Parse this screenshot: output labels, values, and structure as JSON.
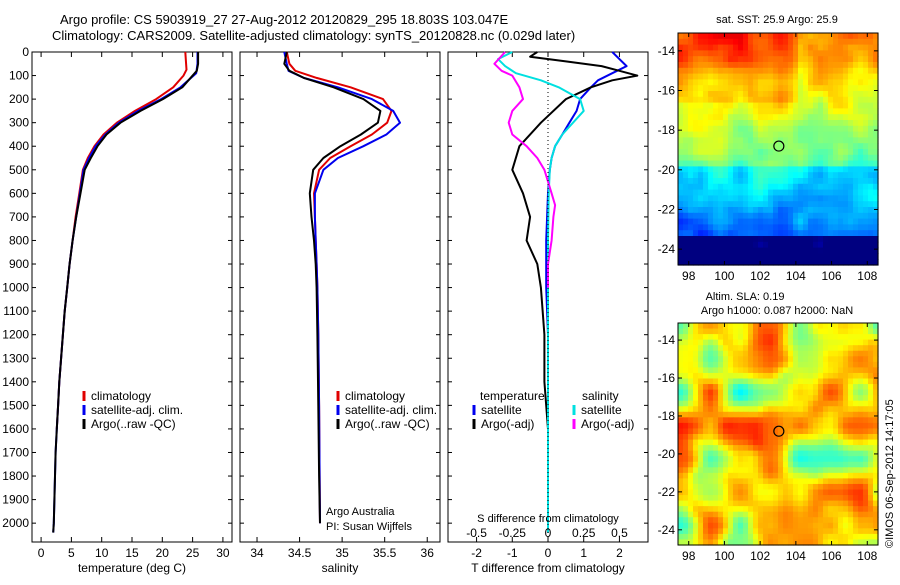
{
  "header": {
    "line1": "Argo profile: CS 5903919_27 27-Aug-2012 20120829_295 18.803S 103.047E",
    "line2": "Climatology: CARS2009. Satellite-adjusted climatology: synTS_20120828.nc (0.029d later)"
  },
  "stamp": "©IMOS 06-Sep-2012 14:17:05",
  "signature": {
    "line1": "Argo Australia",
    "line2": "PI: Susan Wijffels"
  },
  "colors": {
    "climatology": "#e00000",
    "satellite": "#0000ee",
    "argo": "#000000",
    "satellite_s": "#00e0e0",
    "argo_s": "#ff00ff"
  },
  "chart_data": [
    {
      "type": "line",
      "id": "temperature",
      "xlabel": "temperature (deg C)",
      "xlim": [
        -1.5,
        31.5
      ],
      "ylim": [
        2080,
        0
      ],
      "xticks": [
        0,
        5,
        10,
        15,
        20,
        25,
        30
      ],
      "yticks": [
        0,
        100,
        200,
        300,
        400,
        500,
        600,
        700,
        800,
        900,
        1000,
        1100,
        1200,
        1300,
        1400,
        1500,
        1600,
        1700,
        1800,
        1900,
        2000
      ],
      "legend": [
        "climatology",
        "satellite-adj. clim.",
        "Argo(..raw -QC)"
      ],
      "series": [
        {
          "name": "climatology",
          "color_key": "climatology",
          "x": [
            23.8,
            24.0,
            23.5,
            21.8,
            19.0,
            15.5,
            12.5,
            10.3,
            8.8,
            7.7,
            6.9,
            6.3,
            5.7,
            5.2,
            4.7,
            4.3,
            3.9,
            3.6,
            3.3,
            3.0,
            2.8,
            2.6
          ],
          "y": [
            0,
            75,
            100,
            150,
            200,
            250,
            300,
            350,
            400,
            450,
            500,
            600,
            700,
            800,
            900,
            1000,
            1100,
            1200,
            1300,
            1400,
            1500,
            1600
          ]
        },
        {
          "name": "satellite-adj. clim.",
          "color_key": "satellite",
          "x": [
            25.8,
            25.8,
            25.6,
            23.0,
            19.8,
            16.0,
            12.8,
            10.6,
            9.0,
            7.9,
            7.0,
            6.4,
            5.8,
            5.2,
            4.7,
            4.3,
            3.9,
            3.6,
            3.3,
            3.0,
            2.8,
            2.6,
            2.4,
            2.3,
            2.2,
            2.1,
            2.0
          ],
          "y": [
            0,
            50,
            90,
            150,
            200,
            250,
            300,
            350,
            400,
            450,
            500,
            600,
            700,
            800,
            900,
            1000,
            1100,
            1200,
            1300,
            1400,
            1500,
            1600,
            1700,
            1800,
            1900,
            2000,
            2040
          ]
        },
        {
          "name": "Argo(..raw -QC)",
          "color_key": "argo",
          "x": [
            25.9,
            25.9,
            25.7,
            23.3,
            20.1,
            16.4,
            13.1,
            10.8,
            9.3,
            8.2,
            7.2,
            6.5,
            5.8,
            5.2,
            4.7,
            4.3,
            3.9,
            3.6,
            3.3,
            3.0,
            2.8,
            2.6,
            2.4,
            2.3,
            2.2,
            2.1,
            2.0
          ],
          "y": [
            0,
            50,
            80,
            150,
            200,
            250,
            300,
            350,
            400,
            450,
            500,
            600,
            700,
            800,
            900,
            1000,
            1100,
            1200,
            1300,
            1400,
            1500,
            1600,
            1700,
            1800,
            1900,
            2000,
            2040
          ]
        }
      ]
    },
    {
      "type": "line",
      "id": "salinity",
      "xlabel": "salinity",
      "xlim": [
        33.8,
        36.15
      ],
      "ylim": [
        2080,
        0
      ],
      "xticks": [
        34,
        34.5,
        35,
        35.5,
        36
      ],
      "tick_labels": [
        "34",
        "34.5",
        "35",
        "35.5",
        "36"
      ],
      "legend": [
        "climatology",
        "satellite-adj. clim.",
        "Argo(..raw -QC)"
      ],
      "series": [
        {
          "name": "climatology",
          "color_key": "climatology",
          "x": [
            34.35,
            34.38,
            34.45,
            34.7,
            35.1,
            35.48,
            35.58,
            35.53,
            35.35,
            35.1,
            34.86,
            34.73,
            34.67,
            34.68,
            34.69,
            34.7,
            34.71,
            34.72,
            34.73,
            34.735,
            34.74
          ],
          "y": [
            0,
            50,
            80,
            110,
            150,
            200,
            250,
            300,
            350,
            400,
            450,
            500,
            600,
            700,
            800,
            900,
            1000,
            1200,
            1500,
            1800,
            2000
          ]
        },
        {
          "name": "satellite-adj. clim.",
          "color_key": "satellite",
          "x": [
            34.32,
            34.35,
            34.37,
            34.55,
            34.95,
            35.35,
            35.6,
            35.68,
            35.52,
            35.25,
            34.95,
            34.78,
            34.68,
            34.68,
            34.69,
            34.7,
            34.71,
            34.72,
            34.73,
            34.735,
            34.74
          ],
          "y": [
            0,
            50,
            80,
            110,
            150,
            200,
            250,
            300,
            350,
            400,
            450,
            500,
            600,
            700,
            800,
            900,
            1000,
            1200,
            1500,
            1800,
            2000
          ]
        },
        {
          "name": "Argo(..raw -QC)",
          "color_key": "argo",
          "x": [
            34.35,
            34.32,
            34.38,
            34.55,
            34.9,
            35.25,
            35.45,
            35.42,
            35.22,
            34.98,
            34.78,
            34.66,
            34.62,
            34.64,
            34.67,
            34.69,
            34.7,
            34.71,
            34.72,
            34.73,
            34.74
          ],
          "y": [
            0,
            50,
            80,
            110,
            150,
            200,
            250,
            300,
            350,
            400,
            450,
            500,
            600,
            700,
            800,
            900,
            1000,
            1200,
            1500,
            1800,
            2000
          ]
        }
      ]
    },
    {
      "type": "line",
      "id": "difference",
      "xlabel": "T difference from climatology",
      "xlabel_top": "S difference from climatology",
      "xlim": [
        -2.8,
        2.8
      ],
      "ylim": [
        2080,
        0
      ],
      "xticks": [
        -2,
        -1,
        0,
        1,
        2
      ],
      "tick_labels": [
        "-2",
        "-1",
        "0",
        "1",
        "2"
      ],
      "top_ticks": [
        -0.5,
        -0.25,
        0,
        0.25,
        0.5
      ],
      "top_tick_labels": [
        "-0.5",
        "-0.25",
        "0",
        "0.25",
        "0.5"
      ],
      "legend_t_title": "temperature",
      "legend_s_title": "salinity",
      "legend_t": [
        "satellite",
        "Argo(-adj)"
      ],
      "legend_s": [
        "satellite",
        "Argo(-adj)"
      ],
      "series": [
        {
          "name": "satellite",
          "group": "temperature",
          "color_key": "satellite",
          "x": [
            1.8,
            2.0,
            2.2,
            1.8,
            1.4,
            1.2,
            0.9,
            0.8,
            0.6,
            0.4,
            0.2,
            0.1,
            0.05,
            0.0,
            -0.05,
            -0.05,
            0,
            0,
            0,
            0,
            0,
            0
          ],
          "y": [
            0,
            30,
            60,
            90,
            120,
            150,
            200,
            250,
            300,
            350,
            400,
            450,
            500,
            600,
            800,
            1000,
            1200,
            1400,
            1600,
            1800,
            2000,
            2040
          ]
        },
        {
          "name": "Argo(-adj)",
          "group": "temperature",
          "color_key": "argo",
          "x": [
            -0.3,
            -0.5,
            0.5,
            1.5,
            2.0,
            2.5,
            1.8,
            1.2,
            0.5,
            -0.2,
            -0.8,
            -1.0,
            -0.7,
            -0.5,
            -0.6,
            -0.3,
            -0.2,
            -0.1,
            -0.1,
            0,
            0,
            0,
            0
          ],
          "y": [
            0,
            20,
            40,
            60,
            80,
            100,
            120,
            150,
            200,
            300,
            400,
            500,
            600,
            700,
            800,
            900,
            1000,
            1200,
            1400,
            1600,
            1800,
            2000,
            2040
          ]
        },
        {
          "name": "satellite",
          "group": "salinity",
          "color_key": "satellite_s",
          "x": [
            -1.0,
            -1.4,
            -1.2,
            -0.9,
            -0.2,
            0.3,
            0.9,
            1.0,
            0.7,
            0.4,
            0.2,
            0.1,
            0.05,
            0.02,
            0,
            0,
            0,
            0
          ],
          "y": [
            0,
            30,
            60,
            90,
            120,
            150,
            200,
            250,
            300,
            350,
            400,
            450,
            500,
            600,
            800,
            1200,
            1600,
            2040
          ]
        },
        {
          "name": "Argo(-adj)",
          "group": "salinity",
          "color_key": "argo_s",
          "x": [
            -1.2,
            -1.5,
            -1.3,
            -1.0,
            -0.8,
            -0.7,
            -1.0,
            -1.1,
            -1.0,
            -0.6,
            -0.3,
            -0.1,
            0,
            0.1,
            0.2,
            0.15,
            0.1,
            0,
            0
          ],
          "y": [
            0,
            50,
            80,
            100,
            150,
            200,
            250,
            300,
            350,
            400,
            450,
            500,
            550,
            600,
            650,
            700,
            800,
            900,
            1000
          ]
        }
      ]
    },
    {
      "type": "heatmap",
      "id": "sst_map",
      "title": "sat. SST: 25.9 Argo: 25.9",
      "xlim": [
        97.4,
        108.6
      ],
      "ylim": [
        -24.8,
        -13.1
      ],
      "xticks": [
        98,
        100,
        102,
        104,
        106,
        108
      ],
      "yticks": [
        -14,
        -16,
        -18,
        -20,
        -22,
        -24
      ],
      "marker": {
        "lon": 103.047,
        "lat": -18.803
      }
    },
    {
      "type": "heatmap",
      "id": "sla_map",
      "title_line1": "Altim. SLA: 0.19",
      "title_line2": "Argo h1000: 0.087 h2000: NaN",
      "xlim": [
        97.4,
        108.6
      ],
      "ylim": [
        -24.8,
        -13.1
      ],
      "xticks": [
        98,
        100,
        102,
        104,
        106,
        108
      ],
      "yticks": [
        -14,
        -16,
        -18,
        -20,
        -22,
        -24
      ],
      "marker": {
        "lon": 103.047,
        "lat": -18.803
      }
    }
  ]
}
